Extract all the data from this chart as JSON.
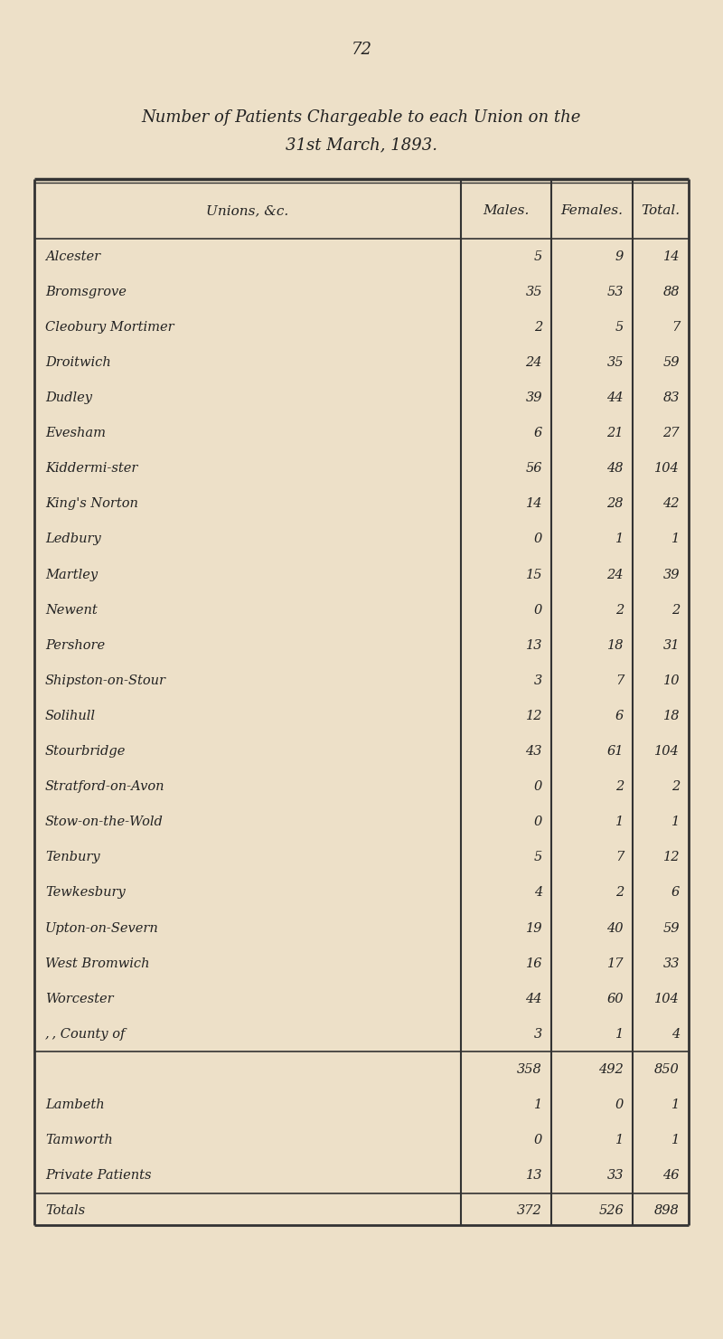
{
  "page_number": "72",
  "title_line1": "Number of Patients Chargeable to each Union on the",
  "title_line2": "31st March, 1893.",
  "col_headers": [
    "Unions, &c.",
    "Males.",
    "Females.",
    "Total."
  ],
  "rows": [
    {
      "name": "Alcester",
      "males": "5",
      "females": "9",
      "total": "14"
    },
    {
      "name": "Bromsgrove",
      "males": "35",
      "females": "53",
      "total": "88"
    },
    {
      "name": "Cleobury Mortimer",
      "males": "2",
      "females": "5",
      "total": "7"
    },
    {
      "name": "Droitwich",
      "males": "24",
      "females": "35",
      "total": "59"
    },
    {
      "name": "Dudley",
      "males": "39",
      "females": "44",
      "total": "83"
    },
    {
      "name": "Evesham",
      "males": "6",
      "females": "21",
      "total": "27"
    },
    {
      "name": "Kiddermi­ster",
      "males": "56",
      "females": "48",
      "total": "104"
    },
    {
      "name": "King's Norton",
      "males": "14",
      "females": "28",
      "total": "42"
    },
    {
      "name": "Ledbury",
      "males": "0",
      "females": "1",
      "total": "1"
    },
    {
      "name": "Martley",
      "males": "15",
      "females": "24",
      "total": "39"
    },
    {
      "name": "Newent",
      "males": "0",
      "females": "2",
      "total": "2"
    },
    {
      "name": "Pershore",
      "males": "13",
      "females": "18",
      "total": "31"
    },
    {
      "name": "Shipston-on-Stour",
      "males": "3",
      "females": "7",
      "total": "10"
    },
    {
      "name": "Solihull",
      "males": "12",
      "females": "6",
      "total": "18"
    },
    {
      "name": "Stourbridge",
      "males": "43",
      "females": "61",
      "total": "104"
    },
    {
      "name": "Stratford-on-Avon",
      "males": "0",
      "females": "2",
      "total": "2"
    },
    {
      "name": "Stow-on-the‑Wold",
      "males": "0",
      "females": "1",
      "total": "1"
    },
    {
      "name": "Tenbury",
      "males": "5",
      "females": "7",
      "total": "12"
    },
    {
      "name": "Tewkesbury",
      "males": "4",
      "females": "2",
      "total": "6"
    },
    {
      "name": "Upton-on-Severn",
      "males": "19",
      "females": "40",
      "total": "59"
    },
    {
      "name": "West Bromwich",
      "males": "16",
      "females": "17",
      "total": "33"
    },
    {
      "name": "Worcester",
      "males": "44",
      "females": "60",
      "total": "104"
    },
    {
      "name": ", , County of",
      "males": "3",
      "females": "1",
      "total": "4"
    }
  ],
  "subtotal": {
    "males": "358",
    "females": "492",
    "total": "850"
  },
  "extra_rows": [
    {
      "name": "Lambeth",
      "males": "1",
      "females": "0",
      "total": "1"
    },
    {
      "name": "Tamworth",
      "males": "0",
      "females": "1",
      "total": "1"
    },
    {
      "name": "Private Patients",
      "males": "13",
      "females": "33",
      "total": "46"
    }
  ],
  "totals_row": {
    "name": "Totals",
    "males": "372",
    "females": "526",
    "total": "898"
  },
  "bg_color": "#ede0c8",
  "text_color": "#222222",
  "border_color": "#333333"
}
